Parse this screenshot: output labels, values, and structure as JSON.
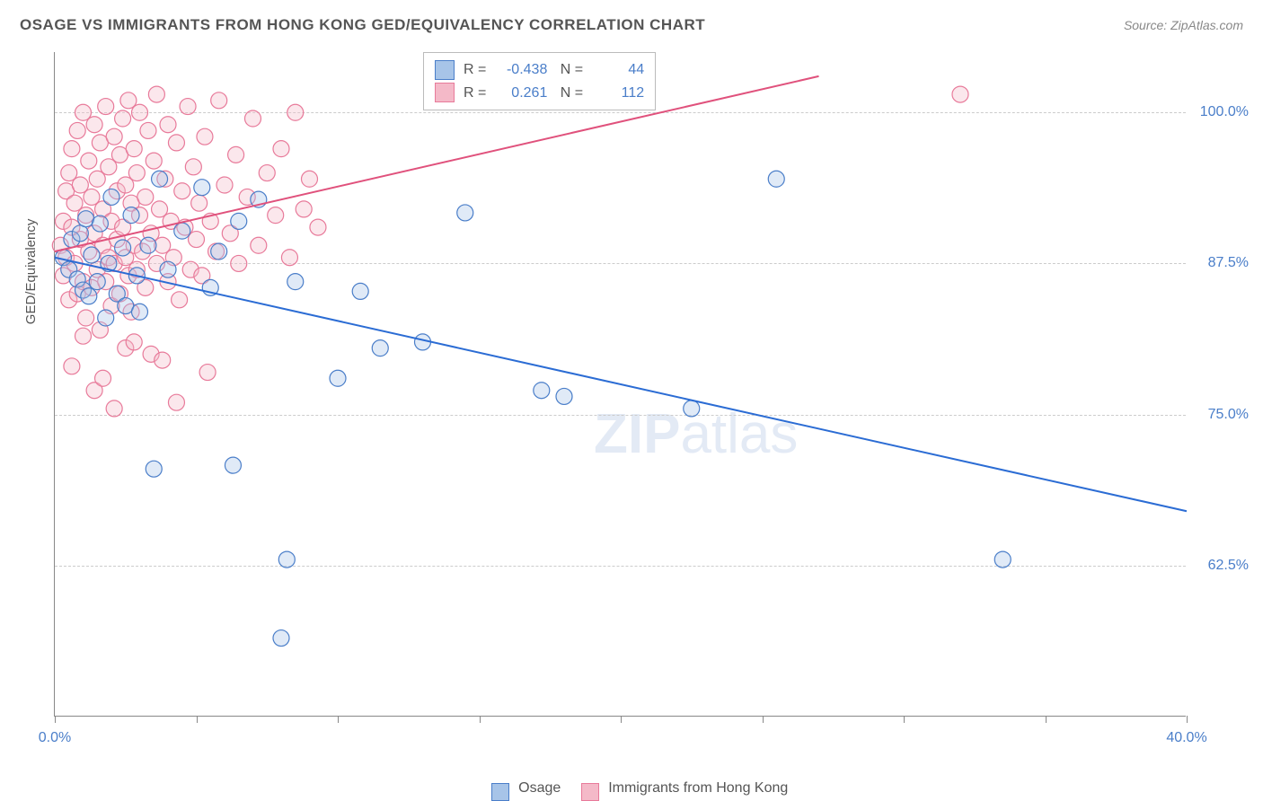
{
  "title": "OSAGE VS IMMIGRANTS FROM HONG KONG GED/EQUIVALENCY CORRELATION CHART",
  "source_label": "Source: ZipAtlas.com",
  "ylabel": "GED/Equivalency",
  "watermark": {
    "bold": "ZIP",
    "rest": "atlas"
  },
  "chart": {
    "type": "scatter",
    "xlim": [
      0,
      40
    ],
    "ylim": [
      50,
      105
    ],
    "x_ticks": [
      0,
      5,
      10,
      15,
      20,
      25,
      30,
      35,
      40
    ],
    "x_tick_labels_shown": {
      "0": "0.0%",
      "40": "40.0%"
    },
    "y_gridlines": [
      62.5,
      75.0,
      87.5,
      100.0
    ],
    "y_tick_labels": [
      "62.5%",
      "75.0%",
      "87.5%",
      "100.0%"
    ],
    "background_color": "#ffffff",
    "grid_color": "#cccccc",
    "axis_color": "#888888",
    "tick_color": "#888888",
    "value_text_color": "#4a7ec9",
    "marker_radius": 9,
    "marker_stroke_width": 1.2,
    "marker_fill_opacity": 0.35,
    "trendline_width": 2
  },
  "series": [
    {
      "name": "Osage",
      "fill": "#a7c4e8",
      "stroke": "#4a7ec9",
      "line_color": "#2b6cd4",
      "R": "-0.438",
      "N": "44",
      "trendline": {
        "x1": 0,
        "y1": 88.0,
        "x2": 40,
        "y2": 67.0
      },
      "points": [
        [
          0.3,
          88.0
        ],
        [
          0.5,
          87.0
        ],
        [
          0.6,
          89.5
        ],
        [
          0.8,
          86.2
        ],
        [
          0.9,
          90.0
        ],
        [
          1.0,
          85.3
        ],
        [
          1.1,
          91.2
        ],
        [
          1.2,
          84.8
        ],
        [
          1.3,
          88.2
        ],
        [
          1.5,
          86.0
        ],
        [
          1.6,
          90.8
        ],
        [
          1.8,
          83.0
        ],
        [
          1.9,
          87.5
        ],
        [
          2.0,
          93.0
        ],
        [
          2.2,
          85.0
        ],
        [
          2.4,
          88.8
        ],
        [
          2.5,
          84.0
        ],
        [
          2.7,
          91.5
        ],
        [
          2.9,
          86.5
        ],
        [
          3.0,
          83.5
        ],
        [
          3.3,
          89.0
        ],
        [
          3.5,
          70.5
        ],
        [
          3.7,
          94.5
        ],
        [
          4.0,
          87.0
        ],
        [
          4.5,
          90.2
        ],
        [
          5.2,
          93.8
        ],
        [
          5.5,
          85.5
        ],
        [
          5.8,
          88.5
        ],
        [
          6.3,
          70.8
        ],
        [
          6.5,
          91.0
        ],
        [
          7.2,
          92.8
        ],
        [
          8.0,
          56.5
        ],
        [
          8.2,
          63.0
        ],
        [
          8.5,
          86.0
        ],
        [
          10.0,
          78.0
        ],
        [
          10.8,
          85.2
        ],
        [
          11.5,
          80.5
        ],
        [
          13.0,
          81.0
        ],
        [
          14.5,
          91.7
        ],
        [
          17.2,
          77.0
        ],
        [
          18.0,
          76.5
        ],
        [
          22.5,
          75.5
        ],
        [
          25.5,
          94.5
        ],
        [
          33.5,
          63.0
        ]
      ]
    },
    {
      "name": "Immigrants from Hong Kong",
      "fill": "#f4b9c8",
      "stroke": "#e87a9a",
      "line_color": "#e0517c",
      "R": "0.261",
      "N": "112",
      "trendline": {
        "x1": 0,
        "y1": 88.5,
        "x2": 27.0,
        "y2": 103.0
      },
      "points": [
        [
          0.2,
          89.0
        ],
        [
          0.3,
          91.0
        ],
        [
          0.3,
          86.5
        ],
        [
          0.4,
          93.5
        ],
        [
          0.4,
          88.0
        ],
        [
          0.5,
          95.0
        ],
        [
          0.5,
          84.5
        ],
        [
          0.6,
          90.5
        ],
        [
          0.6,
          97.0
        ],
        [
          0.7,
          87.5
        ],
        [
          0.7,
          92.5
        ],
        [
          0.8,
          85.0
        ],
        [
          0.8,
          98.5
        ],
        [
          0.9,
          89.5
        ],
        [
          0.9,
          94.0
        ],
        [
          1.0,
          86.0
        ],
        [
          1.0,
          100.0
        ],
        [
          1.1,
          91.5
        ],
        [
          1.1,
          83.0
        ],
        [
          1.2,
          96.0
        ],
        [
          1.2,
          88.5
        ],
        [
          1.3,
          93.0
        ],
        [
          1.3,
          85.5
        ],
        [
          1.4,
          99.0
        ],
        [
          1.4,
          90.0
        ],
        [
          1.5,
          87.0
        ],
        [
          1.5,
          94.5
        ],
        [
          1.6,
          82.0
        ],
        [
          1.6,
          97.5
        ],
        [
          1.7,
          89.0
        ],
        [
          1.7,
          92.0
        ],
        [
          1.8,
          86.0
        ],
        [
          1.8,
          100.5
        ],
        [
          1.9,
          95.5
        ],
        [
          1.9,
          88.0
        ],
        [
          2.0,
          91.0
        ],
        [
          2.0,
          84.0
        ],
        [
          2.1,
          98.0
        ],
        [
          2.1,
          87.5
        ],
        [
          2.2,
          93.5
        ],
        [
          2.2,
          89.5
        ],
        [
          2.3,
          96.5
        ],
        [
          2.3,
          85.0
        ],
        [
          2.4,
          90.5
        ],
        [
          2.4,
          99.5
        ],
        [
          2.5,
          88.0
        ],
        [
          2.5,
          94.0
        ],
        [
          2.6,
          86.5
        ],
        [
          2.6,
          101.0
        ],
        [
          2.7,
          92.5
        ],
        [
          2.7,
          83.5
        ],
        [
          2.8,
          97.0
        ],
        [
          2.8,
          89.0
        ],
        [
          2.9,
          95.0
        ],
        [
          2.9,
          87.0
        ],
        [
          3.0,
          91.5
        ],
        [
          3.0,
          100.0
        ],
        [
          3.1,
          88.5
        ],
        [
          3.2,
          93.0
        ],
        [
          3.2,
          85.5
        ],
        [
          3.3,
          98.5
        ],
        [
          3.4,
          90.0
        ],
        [
          3.4,
          80.0
        ],
        [
          3.5,
          96.0
        ],
        [
          3.6,
          87.5
        ],
        [
          3.6,
          101.5
        ],
        [
          3.7,
          92.0
        ],
        [
          3.8,
          89.0
        ],
        [
          3.9,
          94.5
        ],
        [
          4.0,
          86.0
        ],
        [
          4.0,
          99.0
        ],
        [
          4.1,
          91.0
        ],
        [
          4.2,
          88.0
        ],
        [
          4.3,
          97.5
        ],
        [
          4.4,
          84.5
        ],
        [
          4.5,
          93.5
        ],
        [
          4.6,
          90.5
        ],
        [
          4.7,
          100.5
        ],
        [
          4.8,
          87.0
        ],
        [
          4.9,
          95.5
        ],
        [
          5.0,
          89.5
        ],
        [
          5.1,
          92.5
        ],
        [
          5.2,
          86.5
        ],
        [
          5.3,
          98.0
        ],
        [
          5.5,
          91.0
        ],
        [
          5.7,
          88.5
        ],
        [
          5.8,
          101.0
        ],
        [
          6.0,
          94.0
        ],
        [
          6.2,
          90.0
        ],
        [
          6.4,
          96.5
        ],
        [
          6.5,
          87.5
        ],
        [
          6.8,
          93.0
        ],
        [
          7.0,
          99.5
        ],
        [
          7.2,
          89.0
        ],
        [
          7.5,
          95.0
        ],
        [
          7.8,
          91.5
        ],
        [
          8.0,
          97.0
        ],
        [
          8.3,
          88.0
        ],
        [
          8.5,
          100.0
        ],
        [
          8.8,
          92.0
        ],
        [
          9.0,
          94.5
        ],
        [
          9.3,
          90.5
        ],
        [
          5.4,
          78.5
        ],
        [
          4.3,
          76.0
        ],
        [
          2.1,
          75.5
        ],
        [
          1.4,
          77.0
        ],
        [
          3.8,
          79.5
        ],
        [
          2.5,
          80.5
        ],
        [
          1.0,
          81.5
        ],
        [
          0.6,
          79.0
        ],
        [
          2.8,
          81.0
        ],
        [
          1.7,
          78.0
        ],
        [
          32.0,
          101.5
        ]
      ]
    }
  ],
  "legend_bottom": {
    "0": "Osage",
    "1": "Immigrants from Hong Kong"
  }
}
